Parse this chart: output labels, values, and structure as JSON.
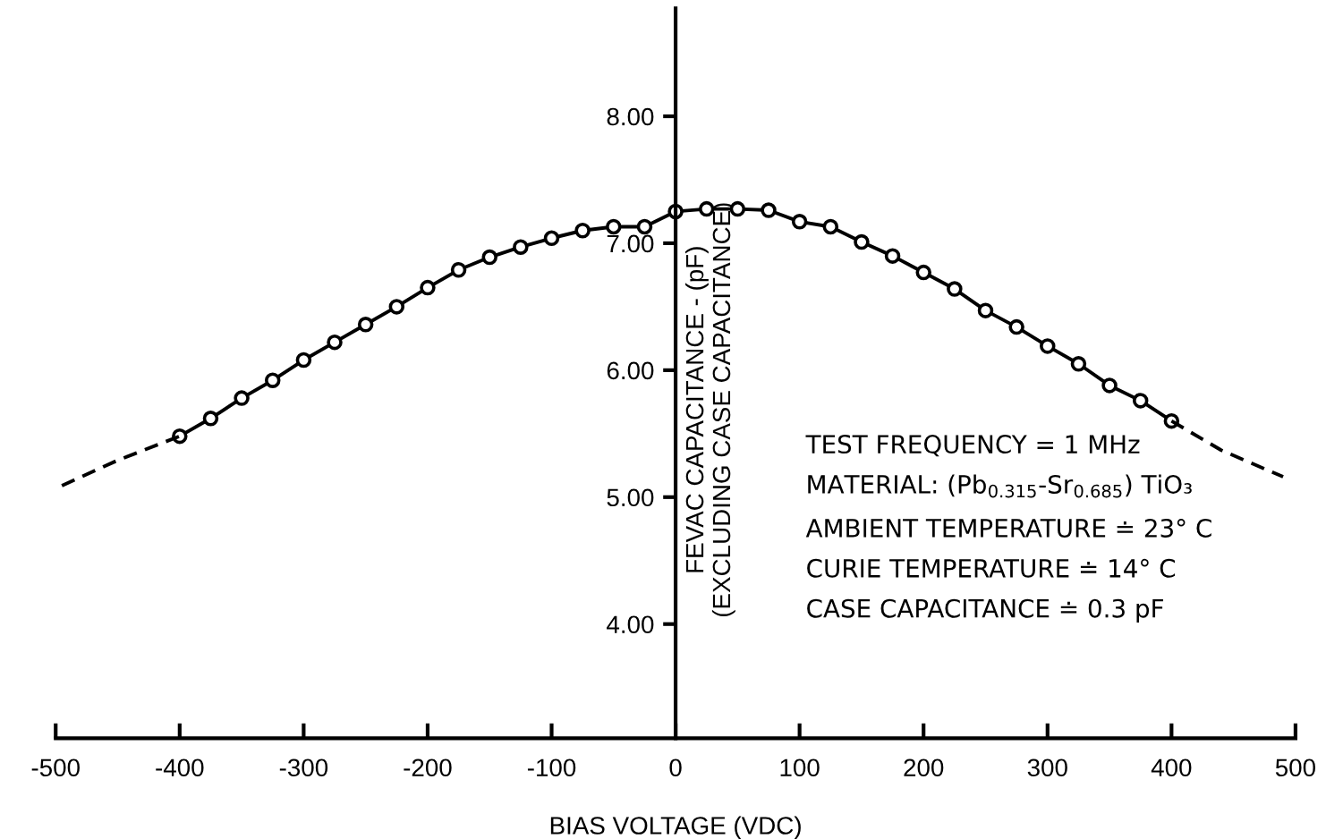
{
  "chart_data": {
    "type": "line",
    "xlabel": "BIAS VOLTAGE (VDC)",
    "ylabel": "FEVAC CAPACITANCE - (pF)\n(EXCLUDING CASE CAPACITANCE)",
    "xlim": [
      -500,
      500
    ],
    "xticks": [
      -500,
      -400,
      -300,
      -200,
      -100,
      0,
      100,
      200,
      300,
      400,
      500
    ],
    "ylim": [
      3.1,
      8.85
    ],
    "yticks": [
      {
        "value": 4,
        "label": "4.00"
      },
      {
        "value": 5,
        "label": "5.00"
      },
      {
        "value": 6,
        "label": "6.00"
      },
      {
        "value": 7,
        "label": "7.00"
      },
      {
        "value": 8,
        "label": "8.00"
      }
    ],
    "grid": false,
    "legend": false,
    "series": [
      {
        "color": "#000000",
        "marker": "circle",
        "line_style": "solid",
        "x": [
          -400,
          -375,
          -350,
          -325,
          -300,
          -275,
          -250,
          -225,
          -200,
          -175,
          -150,
          -125,
          -100,
          -75,
          -50,
          -25,
          0,
          25,
          50,
          75,
          100,
          125,
          150,
          175,
          200,
          225,
          250,
          275,
          300,
          325,
          350,
          375,
          400
        ],
        "values": [
          5.48,
          5.62,
          5.78,
          5.92,
          6.08,
          6.22,
          6.36,
          6.5,
          6.65,
          6.79,
          6.89,
          6.97,
          7.04,
          7.1,
          7.13,
          7.13,
          7.25,
          7.27,
          7.27,
          7.26,
          7.17,
          7.13,
          7.01,
          6.9,
          6.77,
          6.64,
          6.47,
          6.34,
          6.19,
          6.05,
          5.88,
          5.76,
          5.6
        ]
      },
      {
        "color": "#000000",
        "marker": "none",
        "line_style": "dashed",
        "x": [
          -495,
          -450,
          -400
        ],
        "values": [
          5.09,
          5.29,
          5.48
        ]
      },
      {
        "color": "#000000",
        "marker": "none",
        "line_style": "dashed",
        "x": [
          400,
          440,
          490
        ],
        "values": [
          5.6,
          5.37,
          5.16
        ]
      }
    ],
    "annotations": [
      "TEST FREQUENCY = 1 MHz",
      "MATERIAL: (Pb$_{0.315}$-Sr$_{0.685}$) TiO₃",
      "AMBIENT TEMPERATURE ≐ 23° C",
      "CURIE TEMPERATURE ≐ 14° C",
      "CASE CAPACITANCE ≐ 0.3 pF"
    ]
  }
}
